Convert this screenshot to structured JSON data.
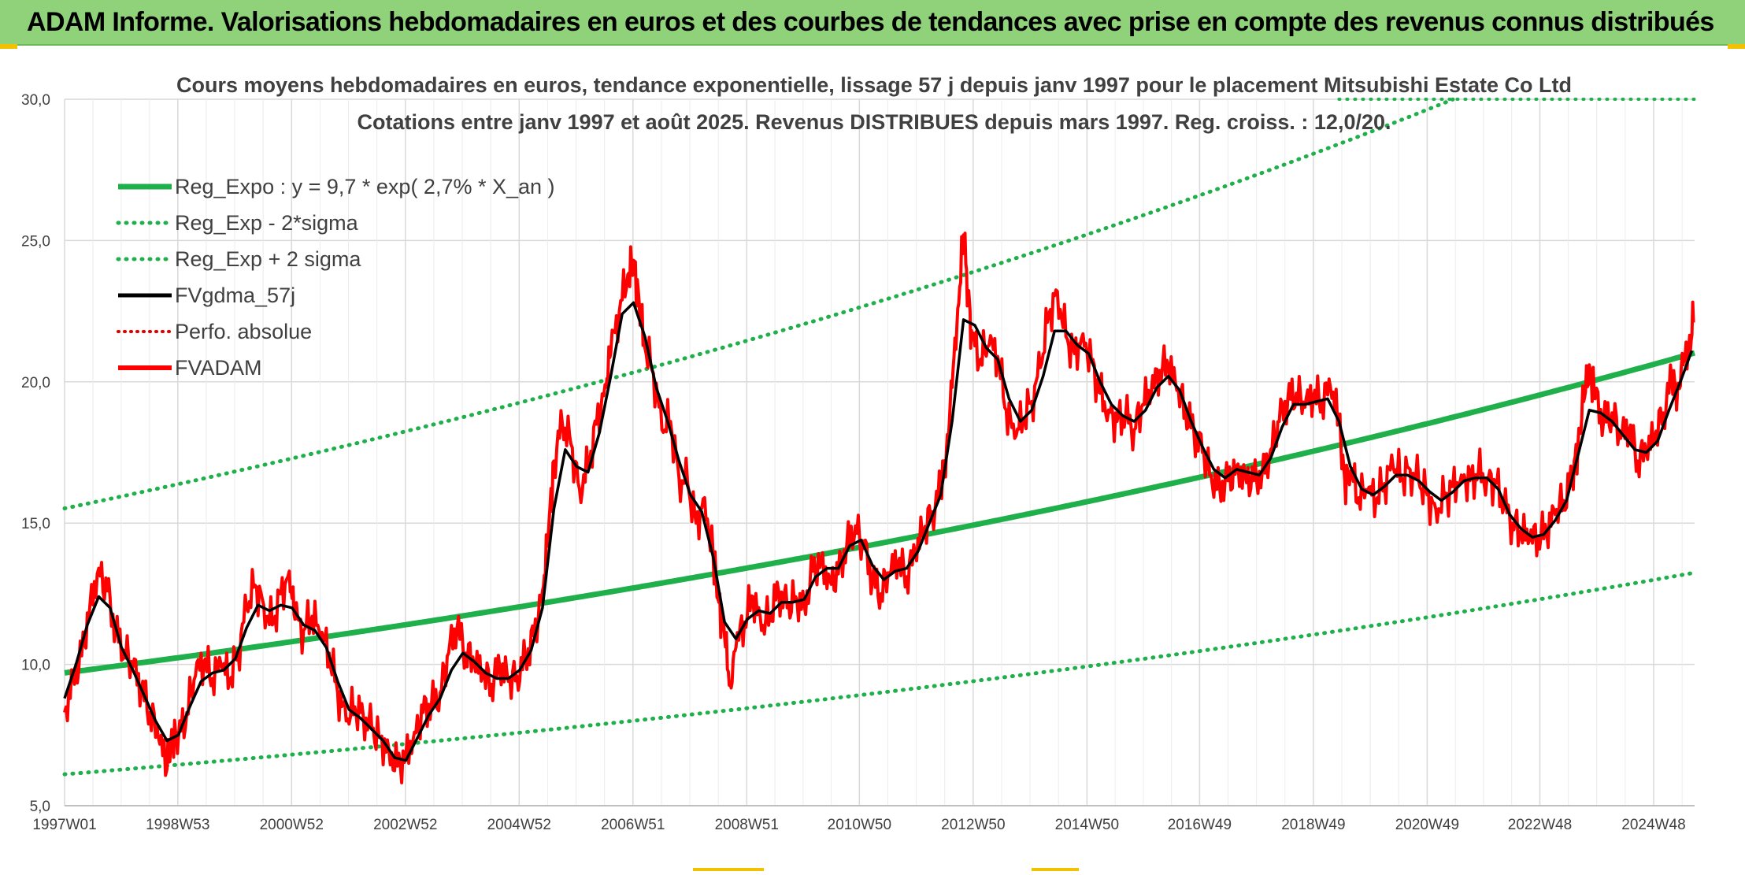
{
  "banner": {
    "title": "ADAM Informe. Valorisations hebdomadaires en euros et des courbes de tendances avec prise en compte des revenus connus distribués"
  },
  "colors": {
    "banner": "#8fd27a",
    "reg_expo": "#1fb04b",
    "sigma": "#1fb04b",
    "fvgdma": "#000000",
    "perfo": "#e00000",
    "fvadam": "#ff0000",
    "grid": "#d9d9d9",
    "axis_text": "#404040",
    "title_text": "#404040"
  },
  "chart_data": {
    "type": "line",
    "title_line1": "Cours moyens hebdomadaires en euros, tendance exponentielle, lissage 57 j depuis janv 1997 pour le placement Mitsubishi Estate Co Ltd",
    "title_line2": "Cotations entre janv 1997 et août 2025. Revenus DISTRIBUES depuis mars 1997. Reg. croiss. : 12,0/20.",
    "xlim": [
      1997.0,
      2025.65
    ],
    "ylim": [
      5,
      30
    ],
    "y_ticks": [
      5,
      10,
      15,
      20,
      25,
      30
    ],
    "y_tick_labels": [
      "5,0",
      "10,0",
      "15,0",
      "20,0",
      "25,0",
      "30,0"
    ],
    "x_ticks": [
      1997.0,
      1998.99,
      2000.99,
      2002.99,
      2004.99,
      2006.99,
      2008.99,
      2010.97,
      2012.97,
      2014.97,
      2016.95,
      2018.95,
      2020.95,
      2022.93,
      2024.93
    ],
    "x_tick_labels": [
      "1997W01",
      "1998W53",
      "2000W52",
      "2002W52",
      "2004W52",
      "2006W51",
      "2008W51",
      "2010W50",
      "2012W50",
      "2014W50",
      "2016W49",
      "2018W49",
      "2020W49",
      "2022W48",
      "2024W48"
    ],
    "grid": true,
    "legend_position": "top-left",
    "legend": [
      {
        "key": "reg_expo",
        "label": "Reg_Expo : y = 9,7 * exp( 2,7% *  X_an )",
        "style": "solid-thick"
      },
      {
        "key": "sigma_minus",
        "label": "Reg_Exp - 2*sigma",
        "style": "dotted-green"
      },
      {
        "key": "sigma_plus",
        "label": "Reg_Exp + 2 sigma",
        "style": "dotted-green"
      },
      {
        "key": "fvgdma",
        "label": "FVgdma_57j",
        "style": "solid-black"
      },
      {
        "key": "perfo",
        "label": "Perfo. absolue",
        "style": "dotted-red"
      },
      {
        "key": "fvadam",
        "label": "FVADAM",
        "style": "solid-red"
      }
    ],
    "regression": {
      "a": 9.7,
      "rate": 0.027,
      "start": 1997.0,
      "lower_factor": 0.63,
      "upper_factor": 1.6
    },
    "fvadam": [
      [
        1997.0,
        8.3
      ],
      [
        1997.15,
        9.6
      ],
      [
        1997.3,
        10.3
      ],
      [
        1997.45,
        12.2
      ],
      [
        1997.6,
        13.4
      ],
      [
        1997.75,
        12.6
      ],
      [
        1997.9,
        11.2
      ],
      [
        1998.05,
        10.5
      ],
      [
        1998.2,
        9.9
      ],
      [
        1998.35,
        9.1
      ],
      [
        1998.5,
        8.3
      ],
      [
        1998.65,
        7.4
      ],
      [
        1998.8,
        6.3
      ],
      [
        1998.9,
        7.6
      ],
      [
        1999.0,
        7.4
      ],
      [
        1999.15,
        8.3
      ],
      [
        1999.3,
        9.6
      ],
      [
        1999.45,
        10.1
      ],
      [
        1999.6,
        9.5
      ],
      [
        1999.75,
        10.0
      ],
      [
        1999.9,
        9.4
      ],
      [
        2000.05,
        10.4
      ],
      [
        2000.2,
        12.0
      ],
      [
        2000.35,
        12.8
      ],
      [
        2000.5,
        12.1
      ],
      [
        2000.65,
        11.4
      ],
      [
        2000.8,
        12.5
      ],
      [
        2000.95,
        13.3
      ],
      [
        2001.05,
        11.6
      ],
      [
        2001.2,
        11.2
      ],
      [
        2001.35,
        11.7
      ],
      [
        2001.5,
        11.0
      ],
      [
        2001.65,
        10.4
      ],
      [
        2001.8,
        9.0
      ],
      [
        2001.95,
        8.0
      ],
      [
        2002.1,
        8.5
      ],
      [
        2002.25,
        8.2
      ],
      [
        2002.4,
        7.7
      ],
      [
        2002.55,
        7.4
      ],
      [
        2002.7,
        7.0
      ],
      [
        2002.85,
        6.4
      ],
      [
        2003.0,
        6.8
      ],
      [
        2003.15,
        7.6
      ],
      [
        2003.3,
        8.3
      ],
      [
        2003.45,
        8.6
      ],
      [
        2003.6,
        9.0
      ],
      [
        2003.75,
        10.4
      ],
      [
        2003.9,
        11.3
      ],
      [
        2004.05,
        10.4
      ],
      [
        2004.2,
        10.0
      ],
      [
        2004.35,
        9.6
      ],
      [
        2004.5,
        9.3
      ],
      [
        2004.65,
        9.9
      ],
      [
        2004.8,
        9.4
      ],
      [
        2004.95,
        9.6
      ],
      [
        2005.1,
        10.2
      ],
      [
        2005.25,
        11.0
      ],
      [
        2005.4,
        12.6
      ],
      [
        2005.5,
        14.5
      ],
      [
        2005.6,
        17.2
      ],
      [
        2005.75,
        18.5
      ],
      [
        2005.9,
        17.8
      ],
      [
        2006.05,
        16.2
      ],
      [
        2006.2,
        17.0
      ],
      [
        2006.35,
        18.5
      ],
      [
        2006.5,
        19.9
      ],
      [
        2006.6,
        21.0
      ],
      [
        2006.75,
        22.5
      ],
      [
        2006.9,
        23.8
      ],
      [
        2007.0,
        24.3
      ],
      [
        2007.1,
        22.8
      ],
      [
        2007.2,
        21.2
      ],
      [
        2007.35,
        20.3
      ],
      [
        2007.5,
        18.3
      ],
      [
        2007.65,
        18.6
      ],
      [
        2007.8,
        16.6
      ],
      [
        2007.95,
        16.4
      ],
      [
        2008.1,
        15.0
      ],
      [
        2008.25,
        15.9
      ],
      [
        2008.4,
        13.8
      ],
      [
        2008.5,
        12.2
      ],
      [
        2008.6,
        11.0
      ],
      [
        2008.7,
        9.3
      ],
      [
        2008.8,
        10.6
      ],
      [
        2008.95,
        11.5
      ],
      [
        2009.1,
        12.4
      ],
      [
        2009.25,
        11.2
      ],
      [
        2009.4,
        11.8
      ],
      [
        2009.55,
        12.6
      ],
      [
        2009.7,
        12.0
      ],
      [
        2009.85,
        12.4
      ],
      [
        2010.0,
        12.1
      ],
      [
        2010.15,
        13.3
      ],
      [
        2010.3,
        13.7
      ],
      [
        2010.45,
        13.0
      ],
      [
        2010.6,
        13.2
      ],
      [
        2010.75,
        14.3
      ],
      [
        2010.9,
        14.9
      ],
      [
        2011.05,
        14.1
      ],
      [
        2011.2,
        13.0
      ],
      [
        2011.35,
        12.5
      ],
      [
        2011.5,
        13.2
      ],
      [
        2011.65,
        13.6
      ],
      [
        2011.8,
        13.1
      ],
      [
        2011.95,
        13.9
      ],
      [
        2012.1,
        14.7
      ],
      [
        2012.25,
        15.4
      ],
      [
        2012.4,
        16.2
      ],
      [
        2012.5,
        17.6
      ],
      [
        2012.6,
        19.8
      ],
      [
        2012.7,
        22.6
      ],
      [
        2012.8,
        25.2
      ],
      [
        2012.88,
        23.2
      ],
      [
        2012.95,
        21.5
      ],
      [
        2013.1,
        20.8
      ],
      [
        2013.25,
        21.3
      ],
      [
        2013.4,
        20.9
      ],
      [
        2013.55,
        19.0
      ],
      [
        2013.7,
        18.0
      ],
      [
        2013.85,
        18.7
      ],
      [
        2014.0,
        19.3
      ],
      [
        2014.15,
        20.5
      ],
      [
        2014.3,
        22.4
      ],
      [
        2014.45,
        23.2
      ],
      [
        2014.6,
        21.6
      ],
      [
        2014.75,
        21.0
      ],
      [
        2014.9,
        21.7
      ],
      [
        2015.05,
        20.7
      ],
      [
        2015.2,
        19.6
      ],
      [
        2015.35,
        19.0
      ],
      [
        2015.5,
        18.6
      ],
      [
        2015.65,
        18.8
      ],
      [
        2015.8,
        18.3
      ],
      [
        2015.95,
        19.2
      ],
      [
        2016.1,
        19.6
      ],
      [
        2016.25,
        20.4
      ],
      [
        2016.4,
        20.6
      ],
      [
        2016.55,
        19.7
      ],
      [
        2016.7,
        19.0
      ],
      [
        2016.85,
        18.2
      ],
      [
        2017.0,
        17.5
      ],
      [
        2017.15,
        16.7
      ],
      [
        2017.3,
        16.3
      ],
      [
        2017.45,
        16.5
      ],
      [
        2017.6,
        17.0
      ],
      [
        2017.75,
        16.7
      ],
      [
        2017.9,
        16.5
      ],
      [
        2018.05,
        16.8
      ],
      [
        2018.2,
        17.6
      ],
      [
        2018.35,
        18.6
      ],
      [
        2018.5,
        19.4
      ],
      [
        2018.65,
        19.6
      ],
      [
        2018.8,
        19.1
      ],
      [
        2018.95,
        19.5
      ],
      [
        2019.1,
        19.3
      ],
      [
        2019.25,
        19.8
      ],
      [
        2019.4,
        18.5
      ],
      [
        2019.5,
        16.5
      ],
      [
        2019.6,
        16.8
      ],
      [
        2019.75,
        15.9
      ],
      [
        2019.9,
        16.1
      ],
      [
        2020.05,
        15.8
      ],
      [
        2020.2,
        16.4
      ],
      [
        2020.35,
        17.0
      ],
      [
        2020.5,
        16.6
      ],
      [
        2020.65,
        16.9
      ],
      [
        2020.8,
        16.5
      ],
      [
        2020.95,
        16.0
      ],
      [
        2021.1,
        15.5
      ],
      [
        2021.25,
        15.9
      ],
      [
        2021.4,
        16.3
      ],
      [
        2021.55,
        16.7
      ],
      [
        2021.7,
        16.5
      ],
      [
        2021.85,
        16.8
      ],
      [
        2022.0,
        16.6
      ],
      [
        2022.15,
        16.4
      ],
      [
        2022.3,
        15.6
      ],
      [
        2022.45,
        15.0
      ],
      [
        2022.6,
        14.6
      ],
      [
        2022.75,
        14.4
      ],
      [
        2022.9,
        14.5
      ],
      [
        2023.05,
        14.7
      ],
      [
        2023.2,
        15.3
      ],
      [
        2023.35,
        15.8
      ],
      [
        2023.5,
        16.6
      ],
      [
        2023.6,
        17.8
      ],
      [
        2023.7,
        19.3
      ],
      [
        2023.8,
        20.6
      ],
      [
        2023.9,
        19.4
      ],
      [
        2024.05,
        18.6
      ],
      [
        2024.2,
        18.9
      ],
      [
        2024.35,
        18.0
      ],
      [
        2024.5,
        18.3
      ],
      [
        2024.65,
        17.2
      ],
      [
        2024.8,
        17.5
      ],
      [
        2024.95,
        18.0
      ],
      [
        2025.1,
        18.9
      ],
      [
        2025.25,
        20.1
      ],
      [
        2025.35,
        19.7
      ],
      [
        2025.45,
        20.6
      ],
      [
        2025.55,
        21.3
      ],
      [
        2025.63,
        22.1
      ]
    ],
    "fvgdma": [
      [
        1997.0,
        8.8
      ],
      [
        1997.2,
        10.0
      ],
      [
        1997.4,
        11.4
      ],
      [
        1997.6,
        12.4
      ],
      [
        1997.8,
        12.0
      ],
      [
        1998.0,
        10.6
      ],
      [
        1998.2,
        9.8
      ],
      [
        1998.4,
        8.9
      ],
      [
        1998.6,
        8.0
      ],
      [
        1998.8,
        7.3
      ],
      [
        1999.0,
        7.5
      ],
      [
        1999.2,
        8.5
      ],
      [
        1999.4,
        9.4
      ],
      [
        1999.6,
        9.7
      ],
      [
        1999.8,
        9.8
      ],
      [
        2000.0,
        10.2
      ],
      [
        2000.2,
        11.3
      ],
      [
        2000.4,
        12.1
      ],
      [
        2000.6,
        11.9
      ],
      [
        2000.8,
        12.1
      ],
      [
        2001.0,
        12.0
      ],
      [
        2001.2,
        11.4
      ],
      [
        2001.4,
        11.2
      ],
      [
        2001.6,
        10.6
      ],
      [
        2001.8,
        9.4
      ],
      [
        2002.0,
        8.4
      ],
      [
        2002.2,
        8.1
      ],
      [
        2002.4,
        7.7
      ],
      [
        2002.6,
        7.3
      ],
      [
        2002.8,
        6.7
      ],
      [
        2003.0,
        6.6
      ],
      [
        2003.2,
        7.4
      ],
      [
        2003.4,
        8.2
      ],
      [
        2003.6,
        8.8
      ],
      [
        2003.8,
        9.8
      ],
      [
        2004.0,
        10.4
      ],
      [
        2004.2,
        10.1
      ],
      [
        2004.4,
        9.7
      ],
      [
        2004.6,
        9.5
      ],
      [
        2004.8,
        9.5
      ],
      [
        2005.0,
        9.8
      ],
      [
        2005.2,
        10.5
      ],
      [
        2005.4,
        12.0
      ],
      [
        2005.6,
        15.5
      ],
      [
        2005.8,
        17.6
      ],
      [
        2006.0,
        17.0
      ],
      [
        2006.2,
        16.8
      ],
      [
        2006.4,
        18.2
      ],
      [
        2006.6,
        20.2
      ],
      [
        2006.8,
        22.4
      ],
      [
        2007.0,
        22.8
      ],
      [
        2007.2,
        21.6
      ],
      [
        2007.4,
        19.8
      ],
      [
        2007.6,
        18.6
      ],
      [
        2007.8,
        17.2
      ],
      [
        2008.0,
        16.0
      ],
      [
        2008.2,
        15.4
      ],
      [
        2008.4,
        13.8
      ],
      [
        2008.6,
        11.5
      ],
      [
        2008.8,
        10.9
      ],
      [
        2009.0,
        11.6
      ],
      [
        2009.2,
        11.9
      ],
      [
        2009.4,
        11.8
      ],
      [
        2009.6,
        12.2
      ],
      [
        2009.8,
        12.2
      ],
      [
        2010.0,
        12.3
      ],
      [
        2010.2,
        13.1
      ],
      [
        2010.4,
        13.4
      ],
      [
        2010.6,
        13.4
      ],
      [
        2010.8,
        14.2
      ],
      [
        2011.0,
        14.4
      ],
      [
        2011.2,
        13.5
      ],
      [
        2011.4,
        13.0
      ],
      [
        2011.6,
        13.3
      ],
      [
        2011.8,
        13.4
      ],
      [
        2012.0,
        14.0
      ],
      [
        2012.2,
        15.0
      ],
      [
        2012.4,
        16.0
      ],
      [
        2012.6,
        18.6
      ],
      [
        2012.8,
        22.2
      ],
      [
        2013.0,
        22.0
      ],
      [
        2013.2,
        21.2
      ],
      [
        2013.4,
        20.8
      ],
      [
        2013.6,
        19.4
      ],
      [
        2013.8,
        18.6
      ],
      [
        2014.0,
        19.0
      ],
      [
        2014.2,
        20.2
      ],
      [
        2014.4,
        21.8
      ],
      [
        2014.6,
        21.8
      ],
      [
        2014.8,
        21.3
      ],
      [
        2015.0,
        21.0
      ],
      [
        2015.2,
        20.0
      ],
      [
        2015.4,
        19.2
      ],
      [
        2015.6,
        18.8
      ],
      [
        2015.8,
        18.6
      ],
      [
        2016.0,
        19.0
      ],
      [
        2016.2,
        19.8
      ],
      [
        2016.4,
        20.2
      ],
      [
        2016.6,
        19.7
      ],
      [
        2016.8,
        18.6
      ],
      [
        2017.0,
        17.7
      ],
      [
        2017.2,
        16.9
      ],
      [
        2017.4,
        16.6
      ],
      [
        2017.6,
        16.9
      ],
      [
        2017.8,
        16.8
      ],
      [
        2018.0,
        16.7
      ],
      [
        2018.2,
        17.3
      ],
      [
        2018.4,
        18.4
      ],
      [
        2018.6,
        19.2
      ],
      [
        2018.8,
        19.2
      ],
      [
        2019.0,
        19.3
      ],
      [
        2019.2,
        19.4
      ],
      [
        2019.4,
        18.6
      ],
      [
        2019.6,
        17.0
      ],
      [
        2019.8,
        16.2
      ],
      [
        2020.0,
        16.0
      ],
      [
        2020.2,
        16.3
      ],
      [
        2020.4,
        16.7
      ],
      [
        2020.6,
        16.7
      ],
      [
        2020.8,
        16.5
      ],
      [
        2021.0,
        16.1
      ],
      [
        2021.2,
        15.8
      ],
      [
        2021.4,
        16.1
      ],
      [
        2021.6,
        16.5
      ],
      [
        2021.8,
        16.6
      ],
      [
        2022.0,
        16.6
      ],
      [
        2022.2,
        16.2
      ],
      [
        2022.4,
        15.3
      ],
      [
        2022.6,
        14.8
      ],
      [
        2022.8,
        14.5
      ],
      [
        2023.0,
        14.6
      ],
      [
        2023.2,
        15.1
      ],
      [
        2023.4,
        15.8
      ],
      [
        2023.6,
        17.4
      ],
      [
        2023.8,
        19.0
      ],
      [
        2024.0,
        18.9
      ],
      [
        2024.2,
        18.6
      ],
      [
        2024.4,
        18.1
      ],
      [
        2024.6,
        17.6
      ],
      [
        2024.8,
        17.5
      ],
      [
        2025.0,
        17.9
      ],
      [
        2025.2,
        19.0
      ],
      [
        2025.4,
        20.0
      ],
      [
        2025.6,
        21.1
      ]
    ]
  }
}
